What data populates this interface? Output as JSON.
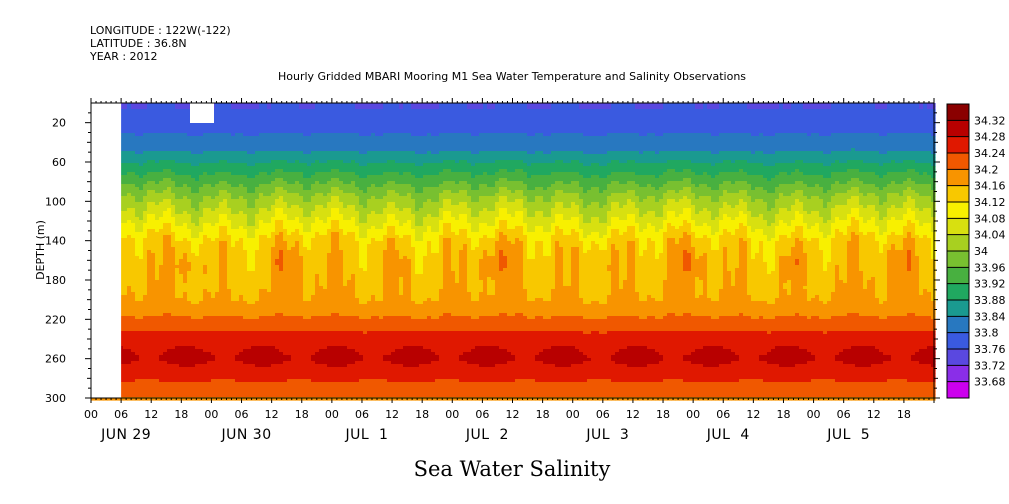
{
  "header": {
    "longitude": "LONGITUDE : 122W(-122)",
    "latitude": "LATITUDE : 36.8N",
    "year": "YEAR : 2012"
  },
  "chart_data": {
    "type": "heatmap",
    "title": "Hourly Gridded MBARI Mooring M1 Sea Water Temperature and Salinity Observations",
    "xlabel": "Sea Water Salinity",
    "ylabel": "DEPTH (m)",
    "y_axis": {
      "range": [
        0,
        300
      ],
      "inverted": true,
      "units": "m",
      "ticks": [
        20,
        60,
        100,
        140,
        180,
        220,
        260,
        300
      ]
    },
    "x_axis": {
      "start": "JUN 29 00:00",
      "end": "JUL 5 23:00",
      "hour_ticks": [
        "00",
        "06",
        "12",
        "18",
        "00",
        "06",
        "12",
        "18",
        "00",
        "06",
        "12",
        "18",
        "00",
        "06",
        "12",
        "18",
        "00",
        "06",
        "12",
        "18",
        "00",
        "06",
        "12",
        "18",
        "00",
        "06",
        "12",
        "18"
      ],
      "day_labels": [
        "JUN 29",
        "JUN 30",
        "JUL  1",
        "JUL  2",
        "JUL  3",
        "JUL  4",
        "JUL  5"
      ],
      "data_start_hours": 6
    },
    "colorbar": {
      "levels": [
        33.68,
        33.72,
        33.76,
        33.8,
        33.84,
        33.88,
        33.92,
        33.96,
        34,
        34.04,
        34.08,
        34.12,
        34.16,
        34.2,
        34.24,
        34.28,
        34.32
      ],
      "colors": [
        "#cc00ee",
        "#8a2ee8",
        "#5a48e0",
        "#3a5ae0",
        "#2878c0",
        "#1a9a90",
        "#20a860",
        "#48b040",
        "#78c030",
        "#a8d020",
        "#d8e010",
        "#f8f000",
        "#f8c800",
        "#f89400",
        "#f05800",
        "#e01800",
        "#b80000",
        "#8a0000"
      ]
    },
    "profile": [
      {
        "depth": 5,
        "salinity": 33.76
      },
      {
        "depth": 20,
        "salinity": 33.78
      },
      {
        "depth": 45,
        "salinity": 33.83
      },
      {
        "depth": 70,
        "salinity": 33.92
      },
      {
        "depth": 95,
        "salinity": 34.01
      },
      {
        "depth": 120,
        "salinity": 34.08
      },
      {
        "depth": 140,
        "salinity": 34.135
      },
      {
        "depth": 170,
        "salinity": 34.15
      },
      {
        "depth": 200,
        "salinity": 34.165
      },
      {
        "depth": 220,
        "salinity": 34.21
      },
      {
        "depth": 240,
        "salinity": 34.265
      },
      {
        "depth": 258,
        "salinity": 34.29
      },
      {
        "depth": 275,
        "salinity": 34.255
      },
      {
        "depth": 300,
        "salinity": 34.19
      }
    ],
    "grid": false,
    "legend": "right"
  }
}
